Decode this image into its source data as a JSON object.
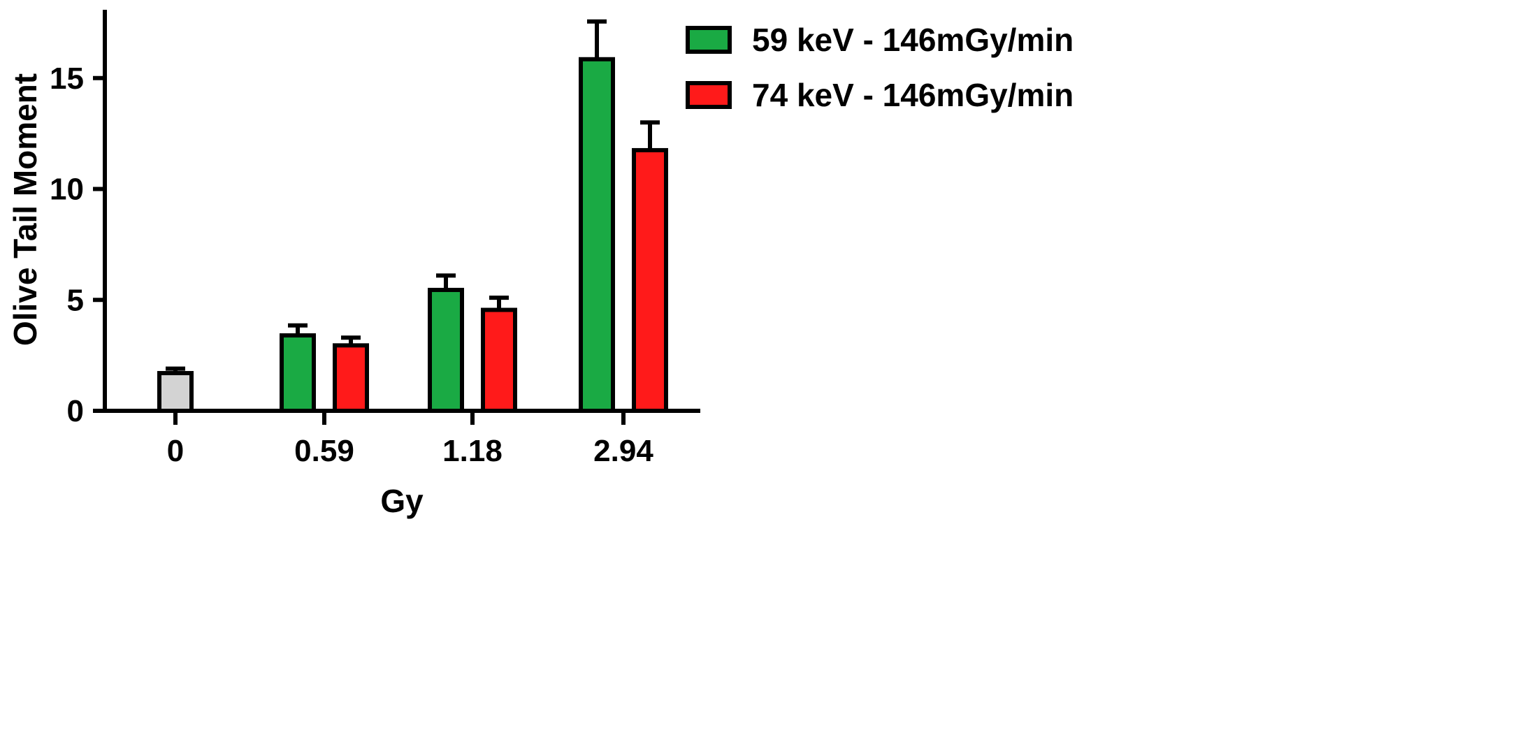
{
  "chart_data": {
    "type": "bar",
    "title": "",
    "xlabel": "Gy",
    "ylabel": "Olive Tail Moment",
    "ylim": [
      0,
      17.5
    ],
    "yticks": [
      0,
      5,
      10,
      15
    ],
    "categories": [
      "0",
      "0.59",
      "1.18",
      "2.94"
    ],
    "legend_position": "top-right",
    "control": {
      "category": "0",
      "value": 1.7,
      "error": 0.2,
      "color": "#d3d3d3"
    },
    "series": [
      {
        "name": "59 keV - 146mGy/min",
        "color": "#1aaa44",
        "values": [
          null,
          3.4,
          5.45,
          15.85
        ],
        "errors": [
          null,
          0.45,
          0.65,
          1.7
        ]
      },
      {
        "name": "74 keV - 146mGy/min",
        "color": "#ff1a1a",
        "values": [
          null,
          2.95,
          4.55,
          11.75
        ],
        "errors": [
          null,
          0.35,
          0.55,
          1.25
        ]
      }
    ]
  }
}
